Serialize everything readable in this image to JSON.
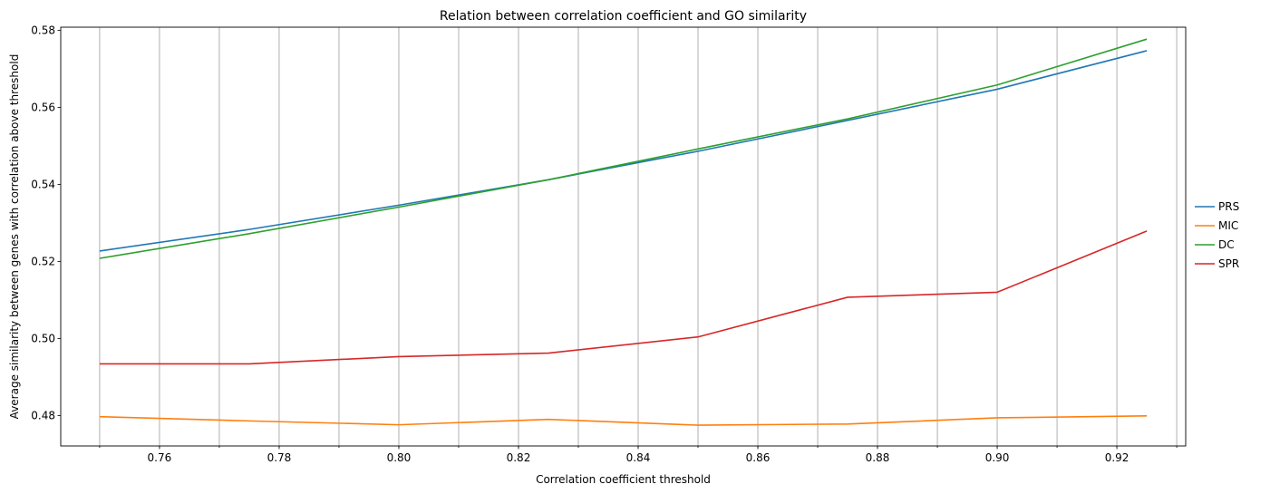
{
  "chart_data": {
    "type": "line",
    "title": "Relation between correlation coefficient and GO similarity",
    "xlabel": "Correlation coefficient threshold",
    "ylabel": "Average similarity between genes with correlation above threshold",
    "xlim": [
      0.7435,
      0.9315
    ],
    "ylim": [
      0.4721,
      0.5808
    ],
    "x": [
      0.75,
      0.775,
      0.8,
      0.825,
      0.85,
      0.875,
      0.9,
      0.925
    ],
    "xticks": [
      "0.76",
      "0.78",
      "0.80",
      "0.82",
      "0.84",
      "0.86",
      "0.88",
      "0.90",
      "0.92"
    ],
    "xtick_values": [
      0.76,
      0.78,
      0.8,
      0.82,
      0.84,
      0.86,
      0.88,
      0.9,
      0.92
    ],
    "vgrid_values": [
      0.75,
      0.76,
      0.77,
      0.78,
      0.79,
      0.8,
      0.81,
      0.82,
      0.83,
      0.84,
      0.85,
      0.86,
      0.87,
      0.88,
      0.89,
      0.9,
      0.91,
      0.92,
      0.93
    ],
    "yticks": [
      "0.48",
      "0.50",
      "0.52",
      "0.54",
      "0.56",
      "0.58"
    ],
    "ytick_values": [
      0.48,
      0.5,
      0.52,
      0.54,
      0.56,
      0.58
    ],
    "grid": "vertical",
    "legend_position": "right",
    "series": [
      {
        "name": "PRS",
        "color": "#1f77b4",
        "values": [
          0.5227,
          0.5283,
          0.5346,
          0.5412,
          0.5486,
          0.5566,
          0.5647,
          0.5747
        ]
      },
      {
        "name": "MIC",
        "color": "#ff7f0e",
        "values": [
          0.4797,
          0.4786,
          0.4776,
          0.479,
          0.4775,
          0.4778,
          0.4794,
          0.4799
        ]
      },
      {
        "name": "DC",
        "color": "#2ca02c",
        "values": [
          0.5208,
          0.5272,
          0.5341,
          0.5412,
          0.5492,
          0.557,
          0.5658,
          0.5777
        ]
      },
      {
        "name": "SPR",
        "color": "#d62728",
        "values": [
          0.4934,
          0.4934,
          0.4953,
          0.4962,
          0.5004,
          0.5107,
          0.512,
          0.5279
        ]
      }
    ]
  }
}
